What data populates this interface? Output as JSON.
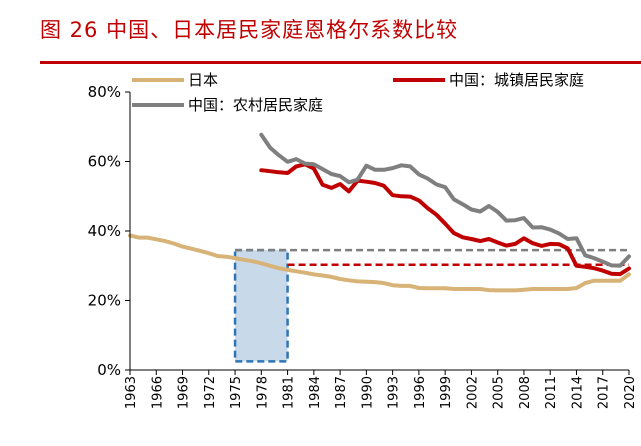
{
  "header": {
    "figure_title": "图 26   中国、日本居民家庭恩格尔系数比较"
  },
  "colors": {
    "title_red": "#c00000",
    "japan": "#d8b378",
    "china_urban": "#c00000",
    "china_rural": "#7f7f7f",
    "box_fill": "#c8daea",
    "box_border": "#2e75b6"
  },
  "chart_data": {
    "type": "line",
    "title": "",
    "xlabel": "",
    "ylabel": "",
    "xlim": [
      1963,
      2020
    ],
    "ylim": [
      0,
      80
    ],
    "y_ticks": [
      "0%",
      "20%",
      "40%",
      "60%",
      "80%"
    ],
    "y_tick_values": [
      0,
      20,
      40,
      60,
      80
    ],
    "x_ticks": [
      "1963",
      "1966",
      "1969",
      "1972",
      "1975",
      "1978",
      "1981",
      "1984",
      "1987",
      "1990",
      "1993",
      "1996",
      "1999",
      "2002",
      "2005",
      "2008",
      "2011",
      "2014",
      "2017",
      "2020"
    ],
    "x_tick_values": [
      1963,
      1966,
      1969,
      1972,
      1975,
      1978,
      1981,
      1984,
      1987,
      1990,
      1993,
      1996,
      1999,
      2002,
      2005,
      2008,
      2011,
      2014,
      2017,
      2020
    ],
    "grid": false,
    "legend": "top",
    "series": [
      {
        "name": "日本",
        "color": "#d8b378",
        "x": [
          1963,
          1964,
          1965,
          1966,
          1967,
          1968,
          1969,
          1970,
          1971,
          1972,
          1973,
          1974,
          1975,
          1976,
          1977,
          1978,
          1979,
          1980,
          1981,
          1982,
          1983,
          1984,
          1985,
          1986,
          1987,
          1988,
          1989,
          1990,
          1991,
          1992,
          1993,
          1994,
          1995,
          1996,
          1997,
          1998,
          1999,
          2000,
          2001,
          2002,
          2003,
          2004,
          2005,
          2006,
          2007,
          2008,
          2009,
          2010,
          2011,
          2012,
          2013,
          2014,
          2015,
          2016,
          2017,
          2018,
          2019,
          2020
        ],
        "values": [
          38.7,
          38.1,
          38.1,
          37.6,
          37.1,
          36.4,
          35.5,
          34.9,
          34.3,
          33.6,
          32.8,
          32.6,
          32.2,
          31.7,
          31.3,
          30.7,
          30.0,
          29.3,
          28.8,
          28.4,
          28.0,
          27.5,
          27.2,
          26.8,
          26.2,
          25.8,
          25.5,
          25.4,
          25.3,
          25.0,
          24.4,
          24.2,
          24.2,
          23.6,
          23.5,
          23.5,
          23.5,
          23.3,
          23.3,
          23.3,
          23.3,
          23.0,
          22.9,
          22.9,
          22.9,
          23.1,
          23.3,
          23.3,
          23.3,
          23.3,
          23.3,
          23.6,
          25.0,
          25.7,
          25.7,
          25.7,
          25.7,
          27.5
        ]
      },
      {
        "name": "中国：城镇居民家庭",
        "color": "#c00000",
        "x": [
          1978,
          1979,
          1980,
          1981,
          1982,
          1983,
          1984,
          1985,
          1986,
          1987,
          1988,
          1989,
          1990,
          1991,
          1992,
          1993,
          1994,
          1995,
          1996,
          1997,
          1998,
          1999,
          2000,
          2001,
          2002,
          2003,
          2004,
          2005,
          2006,
          2007,
          2008,
          2009,
          2010,
          2011,
          2012,
          2013,
          2014,
          2015,
          2016,
          2017,
          2018,
          2019,
          2020
        ],
        "values": [
          57.5,
          57.2,
          56.9,
          56.7,
          58.6,
          59.2,
          58.0,
          53.3,
          52.4,
          53.5,
          51.4,
          54.5,
          54.2,
          53.8,
          53.0,
          50.3,
          50.0,
          49.9,
          48.8,
          46.6,
          44.7,
          42.1,
          39.4,
          38.2,
          37.7,
          37.1,
          37.7,
          36.7,
          35.8,
          36.3,
          37.9,
          36.5,
          35.7,
          36.3,
          36.2,
          35.0,
          30.0,
          29.7,
          29.3,
          28.6,
          27.7,
          27.6,
          29.2
        ]
      },
      {
        "name": "中国：农村居民家庭",
        "color": "#7f7f7f",
        "x": [
          1978,
          1979,
          1980,
          1981,
          1982,
          1983,
          1984,
          1985,
          1986,
          1987,
          1988,
          1989,
          1990,
          1991,
          1992,
          1993,
          1994,
          1995,
          1996,
          1997,
          1998,
          1999,
          2000,
          2001,
          2002,
          2003,
          2004,
          2005,
          2006,
          2007,
          2008,
          2009,
          2010,
          2011,
          2012,
          2013,
          2014,
          2015,
          2016,
          2017,
          2018,
          2019,
          2020
        ],
        "values": [
          67.7,
          64.0,
          61.8,
          59.9,
          60.7,
          59.4,
          59.2,
          57.8,
          56.4,
          55.8,
          54.0,
          54.8,
          58.8,
          57.6,
          57.6,
          58.1,
          58.9,
          58.6,
          56.3,
          55.1,
          53.4,
          52.6,
          49.1,
          47.7,
          46.2,
          45.6,
          47.2,
          45.5,
          43.0,
          43.1,
          43.7,
          41.0,
          41.1,
          40.4,
          39.3,
          37.7,
          37.9,
          33.0,
          32.2,
          31.2,
          30.1,
          30.0,
          32.7
        ]
      }
    ],
    "annotations": [
      {
        "kind": "dashed-line",
        "color": "#7f7f7f",
        "y": 34.5,
        "x_from": 1975,
        "x_to": 2020
      },
      {
        "kind": "dashed-line",
        "color": "#c00000",
        "y": 30.3,
        "x_from": 1981,
        "x_to": 2020
      },
      {
        "kind": "shaded-box",
        "x_from": 1975,
        "x_to": 1981,
        "y_from": 2.5,
        "y_to": 34.5
      }
    ]
  }
}
